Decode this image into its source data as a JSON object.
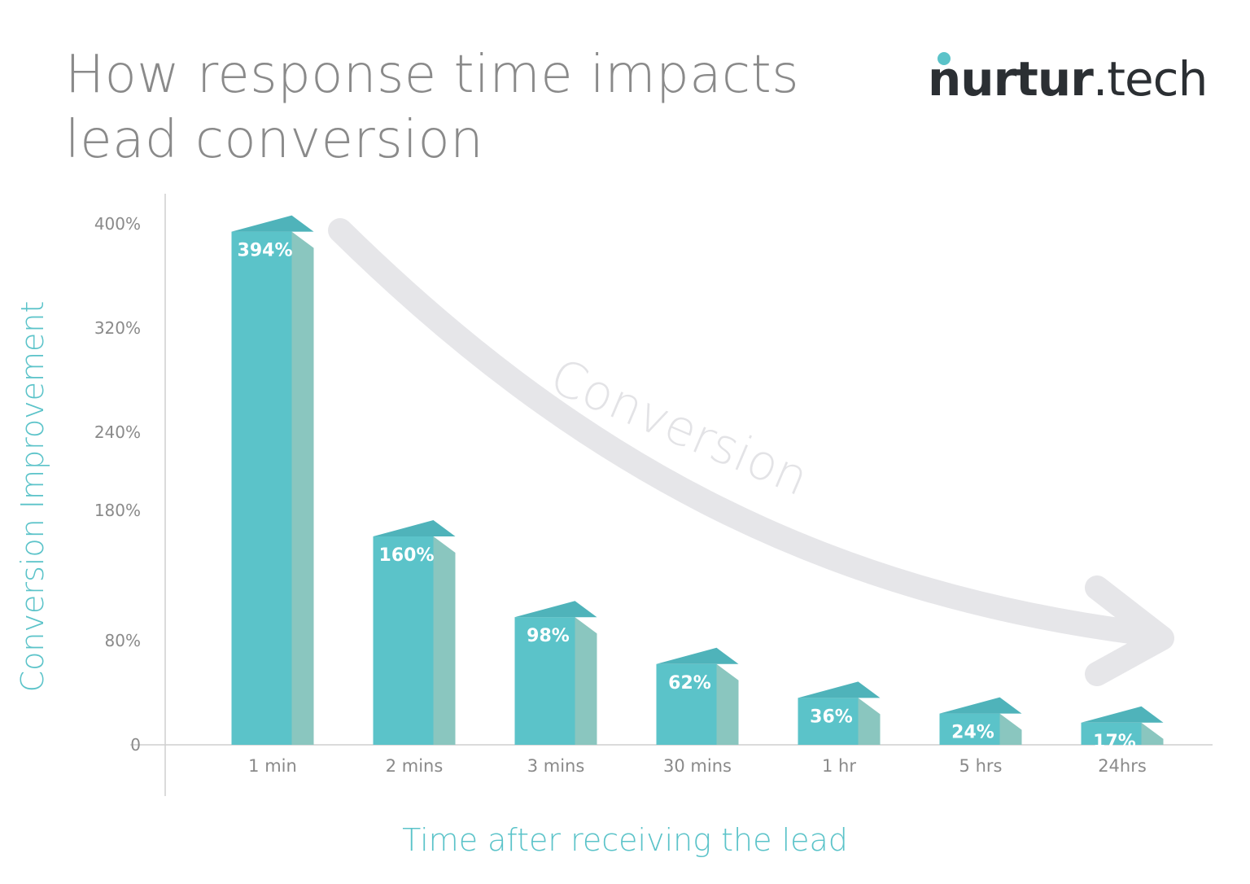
{
  "title": {
    "line1": "How response time impacts",
    "line2": "lead conversion"
  },
  "logo": {
    "brand": "nurtur",
    "suffix": ".tech"
  },
  "colors": {
    "bar_front": "#5bc3c9",
    "bar_side": "#8ac6bf",
    "bar_top": "#4fb3ba",
    "axis_text": "#8a8a8a",
    "accent": "#5bc3c9",
    "arrow": "#e6e6e9"
  },
  "annotation": {
    "text": "Conversion"
  },
  "chart_data": {
    "type": "bar",
    "title": "How response time impacts lead conversion",
    "xlabel": "Time after receiving the lead",
    "ylabel": "Conversion Improvement",
    "categories": [
      "1 min",
      "2 mins",
      "3 mins",
      "30 mins",
      "1 hr",
      "5 hrs",
      "24hrs"
    ],
    "values": [
      394,
      160,
      98,
      62,
      36,
      24,
      17
    ],
    "data_labels": [
      "394%",
      "160%",
      "98%",
      "62%",
      "36%",
      "24%",
      "17%"
    ],
    "ytick_values": [
      0,
      80,
      180,
      240,
      320,
      400
    ],
    "ytick_labels": [
      "0",
      "80%",
      "180%",
      "240%",
      "320%",
      "400%"
    ],
    "ylim": [
      0,
      400
    ],
    "grid": false,
    "legend": "none"
  }
}
